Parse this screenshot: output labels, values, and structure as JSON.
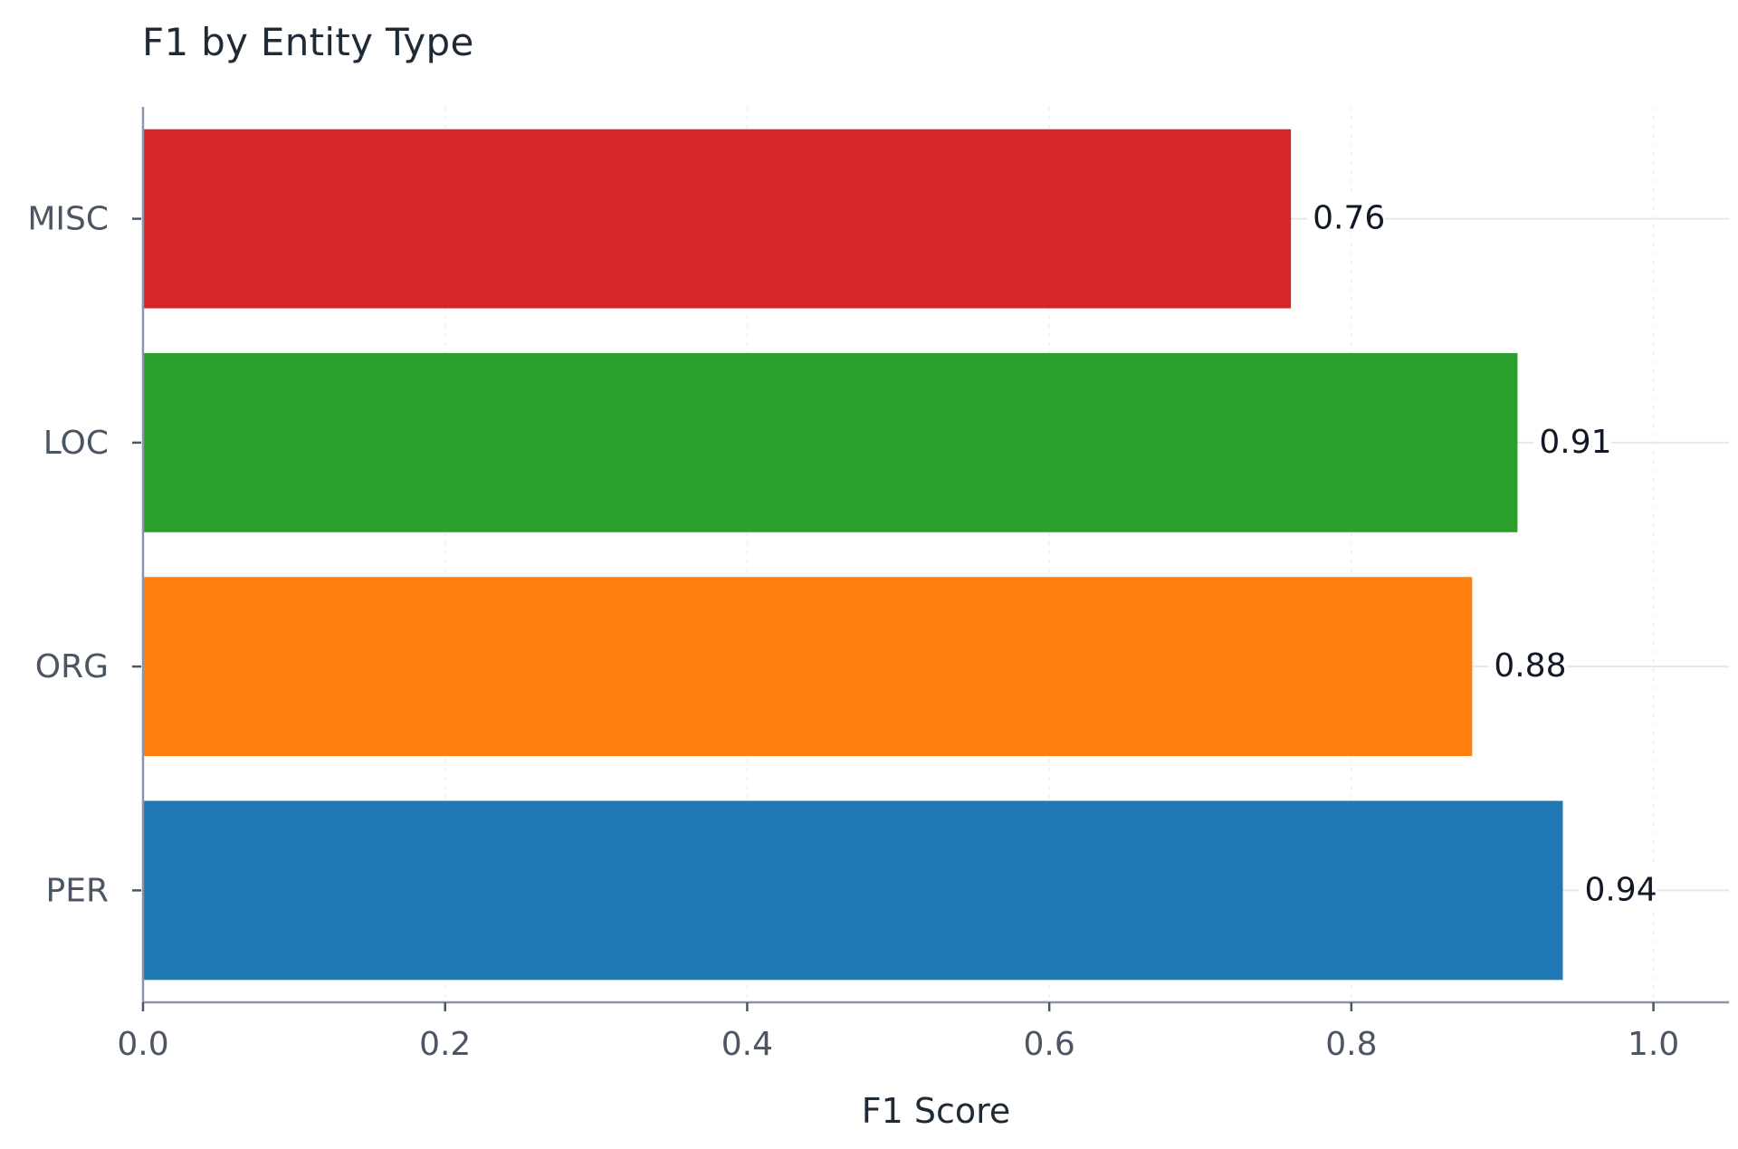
{
  "chart_data": {
    "type": "bar",
    "orientation": "horizontal",
    "title": "F1 by Entity Type",
    "xlabel": "F1 Score",
    "ylabel": "",
    "categories": [
      "PER",
      "ORG",
      "LOC",
      "MISC"
    ],
    "values": [
      0.94,
      0.88,
      0.91,
      0.76
    ],
    "value_labels": [
      "0.94",
      "0.88",
      "0.91",
      "0.76"
    ],
    "colors": [
      "#1f77b4",
      "#ff7f0e",
      "#2ca02c",
      "#d62728"
    ],
    "xlim": [
      0.0,
      1.05
    ],
    "x_ticks": [
      0.0,
      0.2,
      0.4,
      0.6,
      0.8,
      1.0
    ],
    "x_tick_labels": [
      "0.0",
      "0.2",
      "0.4",
      "0.6",
      "0.8",
      "1.0"
    ],
    "grid": true,
    "legend": "none"
  }
}
